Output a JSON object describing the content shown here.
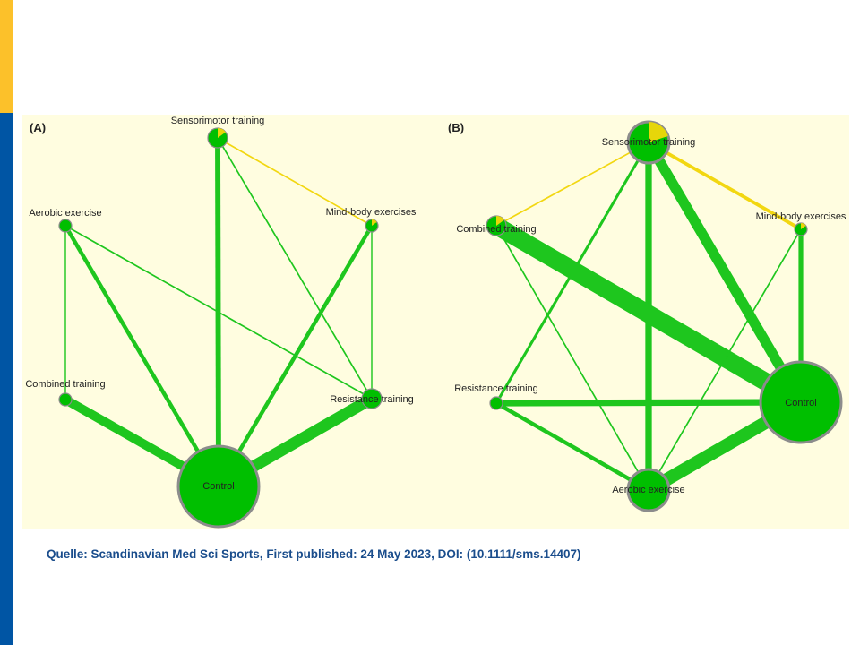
{
  "slide": {
    "colors": {
      "accent_blue": "#0055a4",
      "accent_yellow": "#fcc12a",
      "panel_bg": "#fffde0",
      "caption_color": "#1a4d8c"
    }
  },
  "figure": {
    "colors": {
      "edge_green": "#1ec61e",
      "edge_yellow": "#f2d711",
      "node_green": "#00bf00",
      "node_yellow": "#e6d60a",
      "node_border": "#8c8c8c"
    },
    "panels": [
      {
        "label": "(A)",
        "nodes": [
          {
            "id": "sensorimotor",
            "label": "Sensorimotor training",
            "size": "small",
            "yellow_share": 0.15
          },
          {
            "id": "mindbody",
            "label": "Mind-body exercises",
            "size": "tiny",
            "yellow_share": 0.15
          },
          {
            "id": "aerobic",
            "label": "Aerobic exercise",
            "size": "tiny",
            "yellow_share": 0
          },
          {
            "id": "combined",
            "label": "Combined training",
            "size": "tiny",
            "yellow_share": 0
          },
          {
            "id": "resistance",
            "label": "Resistance training",
            "size": "small",
            "yellow_share": 0
          },
          {
            "id": "control",
            "label": "Control",
            "size": "large",
            "yellow_share": 0
          }
        ],
        "edges": [
          {
            "from": "sensorimotor",
            "to": "control",
            "weight": 4,
            "color": "green"
          },
          {
            "from": "sensorimotor",
            "to": "mindbody",
            "weight": 1,
            "color": "yellow"
          },
          {
            "from": "sensorimotor",
            "to": "resistance",
            "weight": 1,
            "color": "green"
          },
          {
            "from": "aerobic",
            "to": "control",
            "weight": 3,
            "color": "green"
          },
          {
            "from": "aerobic",
            "to": "combined",
            "weight": 0.8,
            "color": "green"
          },
          {
            "from": "aerobic",
            "to": "resistance",
            "weight": 1,
            "color": "green"
          },
          {
            "from": "mindbody",
            "to": "control",
            "weight": 3,
            "color": "green"
          },
          {
            "from": "mindbody",
            "to": "resistance",
            "weight": 0.8,
            "color": "green"
          },
          {
            "from": "combined",
            "to": "control",
            "weight": 7,
            "color": "green"
          },
          {
            "from": "resistance",
            "to": "control",
            "weight": 9,
            "color": "green"
          }
        ]
      },
      {
        "label": "(B)",
        "nodes": [
          {
            "id": "sensorimotor",
            "label": "Sensorimotor training",
            "size": "medium",
            "yellow_share": 0.2
          },
          {
            "id": "mindbody",
            "label": "Mind-body exercises",
            "size": "tiny",
            "yellow_share": 0.15
          },
          {
            "id": "combined",
            "label": "Combined training",
            "size": "small",
            "yellow_share": 0.15
          },
          {
            "id": "resistance",
            "label": "Resistance training",
            "size": "tiny",
            "yellow_share": 0
          },
          {
            "id": "control",
            "label": "Control",
            "size": "large",
            "yellow_share": 0
          },
          {
            "id": "aerobic",
            "label": "Aerobic exercise",
            "size": "medium",
            "yellow_share": 0
          }
        ],
        "edges": [
          {
            "from": "sensorimotor",
            "to": "combined",
            "weight": 1,
            "color": "yellow"
          },
          {
            "from": "sensorimotor",
            "to": "mindbody",
            "weight": 2.5,
            "color": "yellow"
          },
          {
            "from": "sensorimotor",
            "to": "aerobic",
            "weight": 5,
            "color": "green"
          },
          {
            "from": "sensorimotor",
            "to": "resistance",
            "weight": 2,
            "color": "green"
          },
          {
            "from": "sensorimotor",
            "to": "control",
            "weight": 8,
            "color": "green"
          },
          {
            "from": "combined",
            "to": "control",
            "weight": 14,
            "color": "green"
          },
          {
            "from": "combined",
            "to": "aerobic",
            "weight": 1,
            "color": "green"
          },
          {
            "from": "mindbody",
            "to": "control",
            "weight": 3.5,
            "color": "green"
          },
          {
            "from": "mindbody",
            "to": "aerobic",
            "weight": 1,
            "color": "green"
          },
          {
            "from": "resistance",
            "to": "control",
            "weight": 5,
            "color": "green"
          },
          {
            "from": "resistance",
            "to": "aerobic",
            "weight": 3,
            "color": "green"
          },
          {
            "from": "aerobic",
            "to": "control",
            "weight": 10,
            "color": "green"
          }
        ]
      }
    ]
  },
  "source": {
    "text": "Quelle: Scandinavian Med Sci Sports, First published: 24 May 2023, DOI: (10.1111/sms.14407)"
  }
}
